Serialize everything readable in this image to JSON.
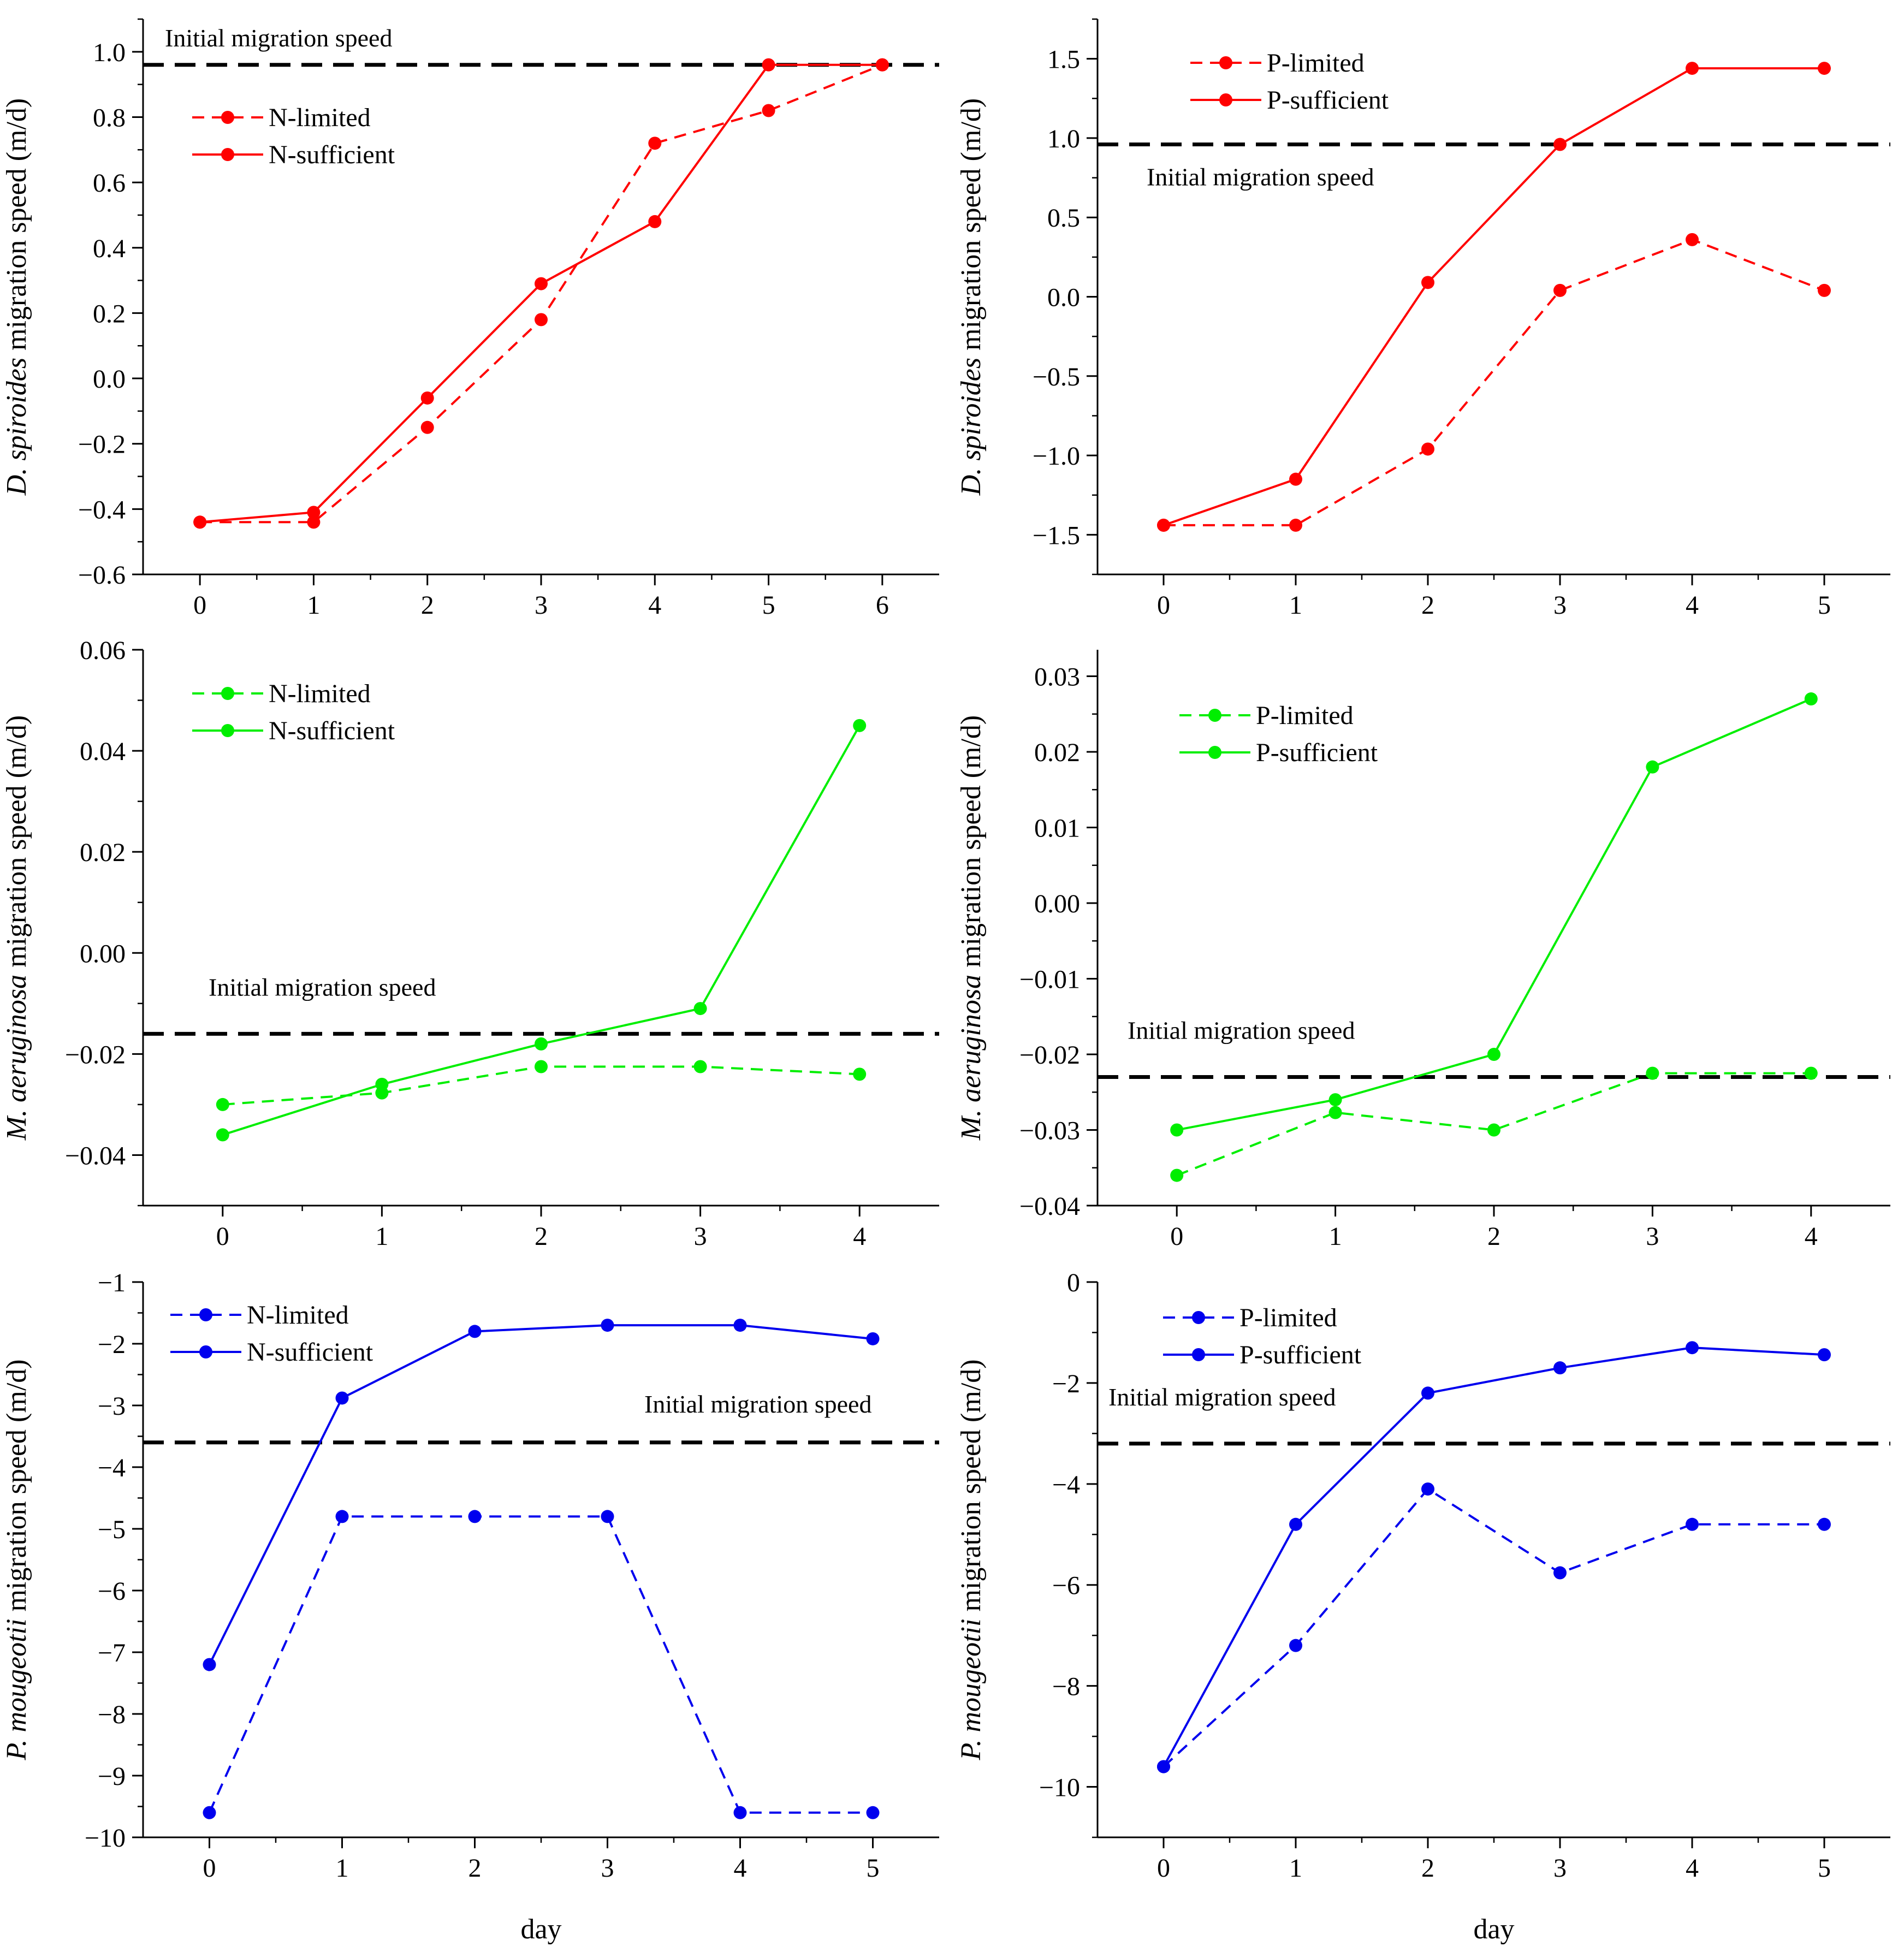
{
  "colors": {
    "red": "#ff0000",
    "green": "#00ee00",
    "blue": "#0000ee",
    "axis": "#000000",
    "ref": "#000000"
  },
  "chart_data": [
    {
      "type": "line",
      "panel": "top-left",
      "ylabel_italic": "D. spiroides",
      "ylabel_rest": " migration speed (m/d)",
      "xlabel": "",
      "color": "red",
      "xlim": [
        -0.5,
        6.5
      ],
      "ylim": [
        -0.6,
        1.1
      ],
      "xticks": [
        0,
        1,
        2,
        3,
        4,
        5,
        6
      ],
      "yticks": [
        -0.6,
        -0.4,
        -0.2,
        0.0,
        0.2,
        0.4,
        0.6,
        0.8,
        1.0
      ],
      "ytick_labels": [
        "−0.6",
        "−0.4",
        "−0.2",
        "0.0",
        "0.2",
        "0.4",
        "0.6",
        "0.8",
        "1.0"
      ],
      "minor_step": 0.1,
      "series": [
        {
          "name": "N-limited",
          "dashed": true,
          "x": [
            0,
            1,
            2,
            3,
            4,
            5,
            6
          ],
          "values": [
            -0.44,
            -0.44,
            -0.15,
            0.18,
            0.72,
            0.82,
            0.96
          ]
        },
        {
          "name": "N-sufficient",
          "dashed": false,
          "x": [
            0,
            1,
            2,
            3,
            4,
            5,
            6
          ],
          "values": [
            -0.44,
            -0.41,
            -0.06,
            0.29,
            0.48,
            0.96,
            0.96
          ]
        }
      ],
      "reference_line": {
        "label": "Initial migration speed",
        "value": 0.96
      },
      "legend_position": "upper-left",
      "ref_label_position": "top-left"
    },
    {
      "type": "line",
      "panel": "top-right",
      "ylabel_italic": "D. spiroides",
      "ylabel_rest": " migration speed (m/d)",
      "xlabel": "",
      "color": "red",
      "xlim": [
        -0.5,
        5.5
      ],
      "ylim": [
        -1.75,
        1.75
      ],
      "xticks": [
        0,
        1,
        2,
        3,
        4,
        5
      ],
      "yticks": [
        -1.5,
        -1.0,
        -0.5,
        0.0,
        0.5,
        1.0,
        1.5
      ],
      "ytick_labels": [
        "−1.5",
        "−1.0",
        "−0.5",
        "0.0",
        "0.5",
        "1.0",
        "1.5"
      ],
      "minor_step": 0.25,
      "series": [
        {
          "name": "P-limited",
          "dashed": true,
          "x": [
            0,
            1,
            2,
            3,
            4,
            5
          ],
          "values": [
            -1.44,
            -1.44,
            -0.96,
            0.04,
            0.36,
            0.04
          ]
        },
        {
          "name": "P-sufficient",
          "dashed": false,
          "x": [
            0,
            1,
            2,
            3,
            4,
            5
          ],
          "values": [
            -1.44,
            -1.15,
            0.09,
            0.96,
            1.44,
            1.44
          ]
        }
      ],
      "reference_line": {
        "label": "Initial migration speed",
        "value": 0.96
      },
      "legend_position": "upper-left",
      "ref_label_position": "below-line-left"
    },
    {
      "type": "line",
      "panel": "middle-left",
      "ylabel_italic": "M. aeruginosa",
      "ylabel_rest": " migration speed (m/d)",
      "xlabel": "",
      "color": "green",
      "xlim": [
        -0.5,
        4.5
      ],
      "ylim": [
        -0.05,
        0.06
      ],
      "xticks": [
        0,
        1,
        2,
        3,
        4
      ],
      "yticks": [
        -0.04,
        -0.02,
        0.0,
        0.02,
        0.04,
        0.06
      ],
      "ytick_labels": [
        "−0.04",
        "−0.02",
        "0.00",
        "0.02",
        "0.04",
        "0.06"
      ],
      "minor_step": 0.01,
      "series": [
        {
          "name": "N-limited",
          "dashed": true,
          "x": [
            0,
            1,
            2,
            3,
            4
          ],
          "values": [
            -0.03,
            -0.0277,
            -0.0225,
            -0.0225,
            -0.024
          ]
        },
        {
          "name": "N-sufficient",
          "dashed": false,
          "x": [
            0,
            1,
            2,
            3,
            4
          ],
          "values": [
            -0.036,
            -0.026,
            -0.018,
            -0.011,
            0.045
          ]
        }
      ],
      "reference_line": {
        "label": "Initial migration speed",
        "value": -0.016
      },
      "legend_position": "upper-left",
      "ref_label_position": "above-line-left"
    },
    {
      "type": "line",
      "panel": "middle-right",
      "ylabel_italic": "M. aeruginosa",
      "ylabel_rest": " migration speed (m/d)",
      "xlabel": "",
      "color": "green",
      "xlim": [
        -0.5,
        4.5
      ],
      "ylim": [
        -0.04,
        0.0335
      ],
      "xticks": [
        0,
        1,
        2,
        3,
        4
      ],
      "yticks": [
        -0.04,
        -0.03,
        -0.02,
        -0.01,
        0.0,
        0.01,
        0.02,
        0.03
      ],
      "ytick_labels": [
        "−0.04",
        "−0.03",
        "−0.02",
        "−0.01",
        "0.00",
        "0.01",
        "0.02",
        "0.03"
      ],
      "minor_step": 0.005,
      "series": [
        {
          "name": "P-limited",
          "dashed": true,
          "x": [
            0,
            1,
            2,
            3,
            4
          ],
          "values": [
            -0.036,
            -0.0277,
            -0.03,
            -0.0225,
            -0.0225
          ]
        },
        {
          "name": "P-sufficient",
          "dashed": false,
          "x": [
            0,
            1,
            2,
            3,
            4
          ],
          "values": [
            -0.03,
            -0.026,
            -0.02,
            0.018,
            0.027
          ]
        }
      ],
      "reference_line": {
        "label": "Initial migration speed",
        "value": -0.023
      },
      "legend_position": "upper-left",
      "ref_label_position": "above-line-left"
    },
    {
      "type": "line",
      "panel": "bottom-left",
      "ylabel_italic": "P. mougeotii",
      "ylabel_rest": " migration speed (m/d)",
      "xlabel": "day",
      "color": "blue",
      "xlim": [
        -0.5,
        5.5
      ],
      "ylim": [
        -10,
        -1
      ],
      "xticks": [
        0,
        1,
        2,
        3,
        4,
        5
      ],
      "yticks": [
        -10,
        -9,
        -8,
        -7,
        -6,
        -5,
        -4,
        -3,
        -2,
        -1
      ],
      "ytick_labels": [
        "−10",
        "−9",
        "−8",
        "−7",
        "−6",
        "−5",
        "−4",
        "−3",
        "−2",
        "−1"
      ],
      "minor_step": 0.5,
      "series": [
        {
          "name": "N-limited",
          "dashed": true,
          "x": [
            0,
            1,
            2,
            3,
            4,
            5
          ],
          "values": [
            -9.6,
            -4.8,
            -4.8,
            -4.8,
            -9.6,
            -9.6
          ]
        },
        {
          "name": "N-sufficient",
          "dashed": false,
          "x": [
            0,
            1,
            2,
            3,
            4,
            5
          ],
          "values": [
            -7.2,
            -2.88,
            -1.8,
            -1.7,
            -1.7,
            -1.92
          ]
        }
      ],
      "reference_line": {
        "label": "Initial migration speed",
        "value": -3.6
      },
      "legend_position": "upper-left",
      "ref_label_position": "above-line-right"
    },
    {
      "type": "line",
      "panel": "bottom-right",
      "ylabel_italic": "P. mougeotii",
      "ylabel_rest": " migration speed (m/d)",
      "xlabel": "day",
      "color": "blue",
      "xlim": [
        -0.5,
        5.5
      ],
      "ylim": [
        -11,
        0
      ],
      "xticks": [
        0,
        1,
        2,
        3,
        4,
        5
      ],
      "yticks": [
        -10,
        -8,
        -6,
        -4,
        -2,
        0
      ],
      "ytick_labels": [
        "−10",
        "−8",
        "−6",
        "−4",
        "−2",
        "0"
      ],
      "minor_step": 1,
      "series": [
        {
          "name": "P-limited",
          "dashed": true,
          "x": [
            0,
            1,
            2,
            3,
            4,
            5
          ],
          "values": [
            -9.6,
            -7.2,
            -4.1,
            -5.76,
            -4.8,
            -4.8
          ]
        },
        {
          "name": "P-sufficient",
          "dashed": false,
          "x": [
            0,
            1,
            2,
            3,
            4,
            5
          ],
          "values": [
            -9.6,
            -4.8,
            -2.2,
            -1.7,
            -1.3,
            -1.44
          ]
        }
      ],
      "reference_line": {
        "label": "Initial migration speed",
        "value": -3.2
      },
      "legend_position": "upper-left",
      "ref_label_position": "above-line-left"
    }
  ]
}
